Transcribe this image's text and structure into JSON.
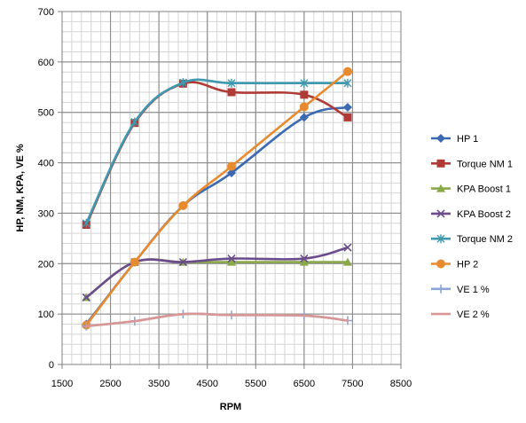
{
  "chart_data": {
    "type": "line",
    "smooth": true,
    "xlabel": "RPM",
    "ylabel": "HP, NM, KPA, VE %",
    "xlim": [
      1500,
      8500
    ],
    "ylim": [
      0,
      700
    ],
    "xticks": [
      1500,
      2500,
      3500,
      4500,
      5500,
      6500,
      7500,
      8500
    ],
    "yticks": [
      0,
      100,
      200,
      300,
      400,
      500,
      600,
      700
    ],
    "grid": true,
    "legend_position": "right",
    "series": [
      {
        "name": "HP 1",
        "color": "#3b6ab3",
        "marker": "diamond",
        "x": [
          2000,
          3000,
          4000,
          5000,
          6500,
          7400
        ],
        "y": [
          80,
          203,
          315,
          380,
          490,
          510
        ]
      },
      {
        "name": "Torque NM 1",
        "color": "#b03a36",
        "marker": "square",
        "x": [
          2000,
          3000,
          4000,
          5000,
          6500,
          7400
        ],
        "y": [
          277,
          479,
          557,
          540,
          535,
          490
        ]
      },
      {
        "name": "KPA Boost 1",
        "color": "#89a847",
        "marker": "triangle",
        "x": [
          2000,
          3000,
          4000,
          5000,
          6500,
          7400
        ],
        "y": [
          133,
          203,
          203,
          203,
          203,
          203
        ]
      },
      {
        "name": "KPA Boost 2",
        "color": "#6a4b8c",
        "marker": "x",
        "x": [
          2000,
          3000,
          4000,
          5000,
          6500,
          7400
        ],
        "y": [
          133,
          203,
          203,
          210,
          210,
          232
        ]
      },
      {
        "name": "Torque NM 2",
        "color": "#3f98ae",
        "marker": "asterisk",
        "x": [
          2000,
          3000,
          4000,
          5000,
          6500,
          7400
        ],
        "y": [
          280,
          481,
          559,
          558,
          558,
          558
        ]
      },
      {
        "name": "HP 2",
        "color": "#e88a2e",
        "marker": "circle",
        "x": [
          2000,
          3000,
          4000,
          5000,
          6500,
          7400
        ],
        "y": [
          78,
          203,
          315,
          393,
          511,
          581
        ]
      },
      {
        "name": "VE 1 %",
        "color": "#8ea6d6",
        "marker": "plus",
        "x": [
          2000,
          3000,
          4000,
          5000,
          6500,
          7400
        ],
        "y": [
          76,
          86,
          100,
          98,
          97,
          87
        ]
      },
      {
        "name": "VE 2 %",
        "color": "#d99694",
        "marker": "none",
        "x": [
          2000,
          3000,
          4000,
          5000,
          6500,
          7400
        ],
        "y": [
          76,
          86,
          100,
          98,
          97,
          87
        ]
      }
    ]
  }
}
